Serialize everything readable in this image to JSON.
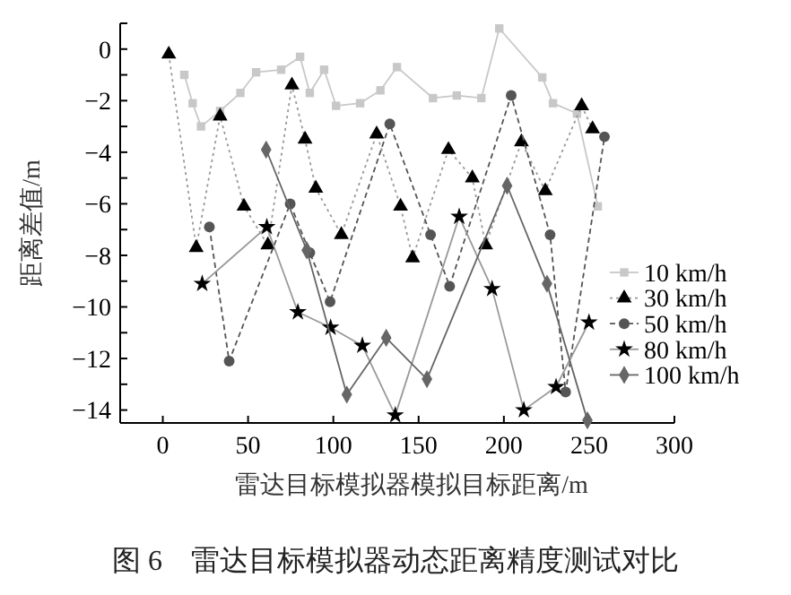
{
  "chart_data": {
    "type": "line",
    "xlabel": "雷达目标模拟器模拟目标距离/m",
    "ylabel": "距离差值/m",
    "annotations": [
      "图 6　雷达目标模拟器动态距离精度测试对比"
    ],
    "xlim": [
      -25,
      300
    ],
    "xticks": [
      0,
      50,
      100,
      150,
      200,
      250,
      300
    ],
    "ylim": [
      -14.5,
      1
    ],
    "yticks": [
      {
        "value": 1,
        "label": null
      },
      0,
      {
        "value": -1,
        "label": null
      },
      -2,
      {
        "value": -3,
        "label": null
      },
      -4,
      {
        "value": -5,
        "label": null
      },
      -6,
      {
        "value": -7,
        "label": null
      },
      -8,
      {
        "value": -9,
        "label": null
      },
      -10,
      {
        "value": -11,
        "label": null
      },
      -12,
      {
        "value": -13,
        "label": null
      },
      -14
    ],
    "legend": "right",
    "grid": false,
    "series": [
      {
        "name": "10 km/h",
        "color": "#c8c8c8",
        "marker": "square",
        "line_style": "solid",
        "x": [
          12.6,
          17.5,
          22.4,
          33.6,
          45.5,
          54.7,
          69.4,
          80.5,
          86.2,
          94.6,
          101.6,
          115.7,
          127.6,
          137.3,
          158.4,
          172.4,
          186.8,
          197.3,
          222.5,
          228.8,
          242.9,
          255.1
        ],
        "values": [
          -1.0,
          -2.1,
          -3.0,
          -2.4,
          -1.7,
          -0.9,
          -0.8,
          -0.3,
          -1.7,
          -0.8,
          -2.2,
          -2.1,
          -1.6,
          -0.7,
          -1.9,
          -1.8,
          -1.9,
          0.8,
          -1.1,
          -2.1,
          -2.5,
          -6.1
        ]
      },
      {
        "name": "30 km/h",
        "color": "#000000",
        "marker": "triangle",
        "line_style": "dotted",
        "x": [
          3.5,
          19.6,
          33.6,
          47.6,
          61.6,
          75.7,
          83.4,
          89.7,
          104.7,
          125.4,
          139.4,
          146.5,
          167.5,
          181.5,
          189.3,
          210.3,
          224.3,
          245.6,
          252
        ],
        "values": [
          -0.2,
          -7.7,
          -2.6,
          -6.1,
          -7.6,
          -1.4,
          -3.5,
          -5.4,
          -7.2,
          -3.3,
          -6.1,
          -8.1,
          -3.9,
          -5.0,
          -7.6,
          -3.6,
          -5.5,
          -2.2,
          -3.1
        ]
      },
      {
        "name": "50 km/h",
        "color": "#555555",
        "marker": "circle",
        "line_style": "dashed",
        "x": [
          27.3,
          38.9,
          74.7,
          86.2,
          98.1,
          133.1,
          157,
          168.2,
          204.3,
          227.1,
          236.2,
          259
        ],
        "values": [
          -6.9,
          -12.1,
          -6.0,
          -7.9,
          -9.8,
          -2.9,
          -7.2,
          -9.2,
          -1.8,
          -7.2,
          -13.3,
          -3.4
        ]
      },
      {
        "name": "80 km/h",
        "color": "#000000",
        "marker": "star",
        "line_style": "solid",
        "x": [
          23.1,
          61,
          79.2,
          98.4,
          117,
          136.3,
          173.8,
          193.1,
          211.7,
          230.6,
          249.9
        ],
        "values": [
          -9.1,
          -6.9,
          -10.2,
          -10.8,
          -11.5,
          -14.2,
          -6.5,
          -9.3,
          -14.0,
          -13.1,
          -10.6
        ]
      },
      {
        "name": "100 km/h",
        "color": "#666666",
        "marker": "diamond",
        "line_style": "solid",
        "x": [
          60.6,
          84.4,
          107.9,
          131,
          154.9,
          201.9,
          225.3,
          249
        ],
        "values": [
          -3.9,
          -7.8,
          -13.4,
          -11.2,
          -12.8,
          -5.3,
          -9.1,
          -14.4
        ]
      }
    ]
  }
}
